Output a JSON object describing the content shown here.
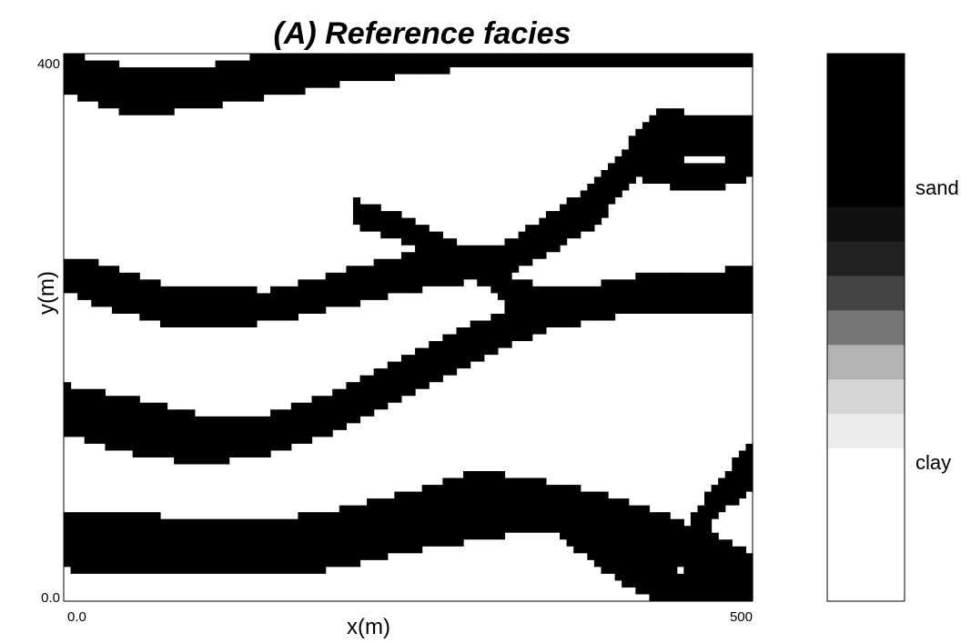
{
  "chart_data": {
    "type": "heatmap",
    "title": "(A) Reference facies",
    "xlabel": "x(m)",
    "ylabel": "y(m)",
    "xlim": [
      0,
      500
    ],
    "ylim": [
      0,
      400
    ],
    "x_ticks": [
      "0.0",
      "500"
    ],
    "y_ticks": [
      "0.0",
      "400"
    ],
    "categories": [
      "clay",
      "sand"
    ],
    "colors": {
      "sand": "#000000",
      "clay": "#ffffff"
    },
    "colorbar": {
      "labels": [
        "sand",
        "clay"
      ],
      "levels": [
        "#000000",
        "#111111",
        "#222222",
        "#444444",
        "#777777",
        "#b3b3b3",
        "#d6d6d6",
        "#ececec",
        "#ffffff"
      ]
    },
    "sand_channels": [
      {
        "cl": [
          [
            0,
            386
          ],
          [
            50,
            372
          ],
          [
            100,
            375
          ],
          [
            150,
            384
          ],
          [
            200,
            390
          ],
          [
            300,
            398
          ],
          [
            400,
            400
          ],
          [
            500,
            400
          ]
        ],
        "w": [
          14,
          18,
          15,
          16,
          12,
          8,
          8,
          8
        ]
      },
      {
        "cl": [
          [
            0,
            240
          ],
          [
            30,
            230
          ],
          [
            80,
            215
          ],
          [
            150,
            215
          ],
          [
            250,
            240
          ],
          [
            320,
            250
          ],
          [
            380,
            285
          ],
          [
            430,
            340
          ],
          [
            500,
            340
          ]
        ],
        "w": [
          12,
          16,
          15,
          12,
          14,
          12,
          16,
          18,
          16
        ]
      },
      {
        "cl": [
          [
            210,
            285
          ],
          [
            250,
            270
          ],
          [
            300,
            245
          ],
          [
            330,
            222
          ],
          [
            370,
            215
          ],
          [
            420,
            225
          ],
          [
            500,
            230
          ]
        ],
        "w": [
          10,
          10,
          11,
          12,
          14,
          13,
          14
        ]
      },
      {
        "cl": [
          [
            0,
            140
          ],
          [
            50,
            128
          ],
          [
            100,
            118
          ],
          [
            150,
            122
          ],
          [
            200,
            140
          ],
          [
            250,
            165
          ],
          [
            300,
            190
          ],
          [
            350,
            210
          ],
          [
            400,
            220
          ],
          [
            500,
            220
          ]
        ],
        "w": [
          18,
          21,
          18,
          15,
          15,
          14,
          14,
          13,
          12,
          12
        ]
      },
      {
        "cl": [
          [
            0,
            45
          ],
          [
            50,
            42
          ],
          [
            100,
            38
          ],
          [
            150,
            40
          ],
          [
            200,
            45
          ],
          [
            250,
            58
          ],
          [
            300,
            70
          ],
          [
            350,
            70
          ],
          [
            400,
            60
          ],
          [
            450,
            40
          ],
          [
            500,
            20
          ]
        ],
        "w": [
          22,
          24,
          20,
          20,
          22,
          22,
          26,
          18,
          16,
          18,
          16
        ]
      },
      {
        "cl": [
          [
            350,
            68
          ],
          [
            380,
            45
          ],
          [
            410,
            25
          ],
          [
            440,
            10
          ],
          [
            470,
            3
          ],
          [
            500,
            0
          ]
        ],
        "w": [
          14,
          14,
          15,
          14,
          12,
          10
        ]
      },
      {
        "cl": [
          [
            430,
            10
          ],
          [
            450,
            40
          ],
          [
            470,
            70
          ],
          [
            500,
            100
          ]
        ],
        "w": [
          10,
          12,
          14,
          16
        ]
      },
      {
        "cl": [
          [
            400,
            320
          ],
          [
            440,
            310
          ],
          [
            480,
            312
          ],
          [
            500,
            320
          ]
        ],
        "w": [
          7,
          8,
          10,
          10
        ]
      }
    ]
  }
}
